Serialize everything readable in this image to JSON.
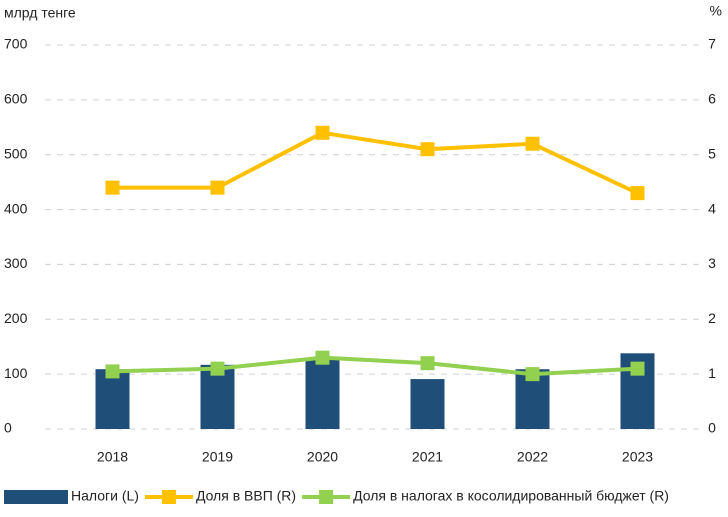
{
  "chart_data": {
    "type": "bar_line",
    "ylabel": "млрд тенге",
    "y2label": "%",
    "categories": [
      "2018",
      "2019",
      "2020",
      "2021",
      "2022",
      "2023"
    ],
    "ylim": [
      0,
      700
    ],
    "yticks": [
      0,
      100,
      200,
      300,
      400,
      500,
      600,
      700
    ],
    "y2lim": [
      0,
      7
    ],
    "y2ticks": [
      0,
      1,
      2,
      3,
      4,
      5,
      6,
      7
    ],
    "grid": true,
    "legend": "bottom",
    "series": [
      {
        "name": "Налоги (L)",
        "type": "bar",
        "color": "#1f4e79",
        "values": [
          109,
          117,
          126,
          91,
          109,
          138
        ]
      },
      {
        "name": "Доля в ВВП (R)",
        "type": "line",
        "axis": "y2",
        "color": "#ffc000",
        "values": [
          4.4,
          4.4,
          5.4,
          5.1,
          5.2,
          4.3
        ]
      },
      {
        "name": "Доля в налогах в косолидированный бюджет (R)",
        "type": "line",
        "axis": "y2",
        "color": "#92d050",
        "values": [
          1.05,
          1.1,
          1.3,
          1.2,
          1.0,
          1.1
        ]
      }
    ]
  }
}
